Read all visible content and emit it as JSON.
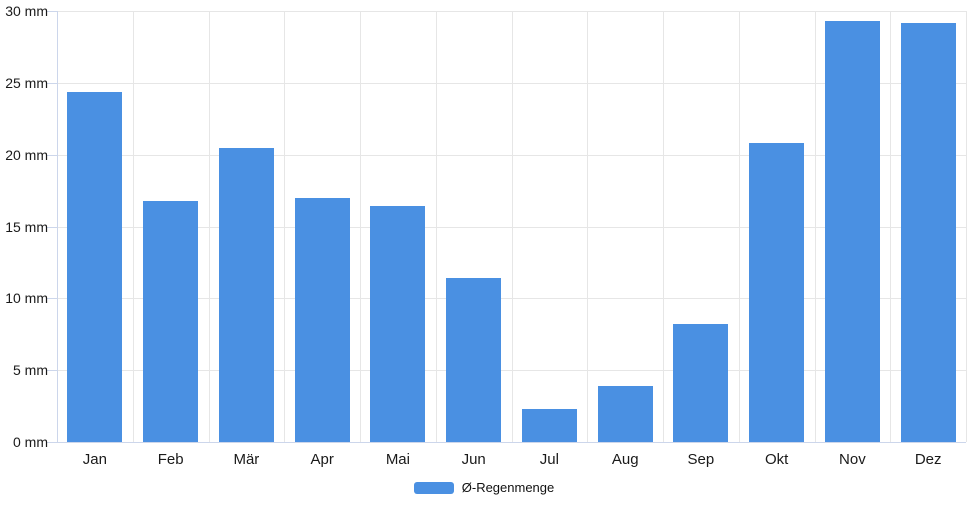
{
  "chart_data": {
    "type": "bar",
    "title": "",
    "xlabel": "",
    "ylabel": "",
    "categories": [
      "Jan",
      "Feb",
      "Mär",
      "Apr",
      "Mai",
      "Jun",
      "Jul",
      "Aug",
      "Sep",
      "Okt",
      "Nov",
      "Dez"
    ],
    "series": [
      {
        "name": "Ø-Regenmenge",
        "color": "#4a90e2",
        "values": [
          24.4,
          16.8,
          20.5,
          17.0,
          16.4,
          11.4,
          2.3,
          3.9,
          8.2,
          20.8,
          29.3,
          29.2
        ]
      }
    ],
    "unit": "mm",
    "ylim": [
      0,
      30
    ],
    "ytick_step": 5,
    "ytick_labels": [
      "0 mm",
      "5 mm",
      "10 mm",
      "15 mm",
      "20 mm",
      "25 mm",
      "30 mm"
    ],
    "grid": true,
    "legend_position": "bottom-center"
  },
  "colors": {
    "background": "#ffffff",
    "bar": "#4a90e2",
    "grid": "#e6e6e6",
    "axis_line": "#ccd6eb",
    "text": "#1a1a1a"
  }
}
